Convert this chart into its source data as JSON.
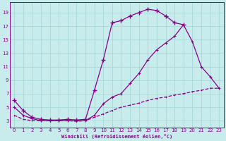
{
  "xlabel": "Windchill (Refroidissement éolien,°C)",
  "background_color": "#c8ecec",
  "grid_color": "#a8d8d8",
  "line_color": "#880088",
  "xlim": [
    -0.5,
    23.5
  ],
  "ylim": [
    2.0,
    20.5
  ],
  "xticks": [
    0,
    1,
    2,
    3,
    4,
    5,
    6,
    7,
    8,
    9,
    10,
    11,
    12,
    13,
    14,
    15,
    16,
    17,
    18,
    19,
    20,
    21,
    22,
    23
  ],
  "yticks": [
    3,
    5,
    7,
    9,
    11,
    13,
    15,
    17,
    19
  ],
  "curve_top_x": [
    0,
    1,
    2,
    3,
    4,
    5,
    6,
    7,
    8,
    9,
    10,
    11,
    12,
    13,
    14,
    15,
    16,
    17,
    18,
    19
  ],
  "curve_top_y": [
    6,
    4.5,
    3.5,
    3.2,
    3.1,
    3.1,
    3.2,
    3.1,
    3.2,
    7.5,
    12.0,
    17.5,
    17.8,
    18.5,
    19.0,
    19.5,
    19.3,
    18.5,
    17.5,
    17.2
  ],
  "curve_mid_x": [
    0,
    1,
    2,
    3,
    4,
    5,
    6,
    7,
    8,
    9,
    10,
    11,
    12,
    13,
    14,
    15,
    16,
    17,
    18,
    19,
    20,
    21,
    22,
    23
  ],
  "curve_mid_y": [
    5.0,
    3.8,
    3.3,
    3.0,
    3.0,
    3.0,
    3.0,
    3.0,
    3.0,
    3.8,
    5.5,
    6.5,
    7.0,
    8.5,
    10.0,
    12.0,
    13.5,
    14.5,
    15.5,
    17.2,
    14.7,
    11.0,
    9.5,
    7.8
  ],
  "curve_bot_x": [
    0,
    1,
    2,
    3,
    4,
    5,
    6,
    7,
    8,
    9,
    10,
    11,
    12,
    13,
    14,
    15,
    16,
    17,
    18,
    19,
    20,
    21,
    22,
    23
  ],
  "curve_bot_y": [
    3.8,
    3.2,
    3.0,
    3.0,
    3.0,
    3.0,
    3.0,
    2.9,
    3.0,
    3.5,
    4.0,
    4.5,
    5.0,
    5.3,
    5.6,
    6.0,
    6.3,
    6.5,
    6.8,
    7.0,
    7.3,
    7.5,
    7.8,
    7.8
  ]
}
